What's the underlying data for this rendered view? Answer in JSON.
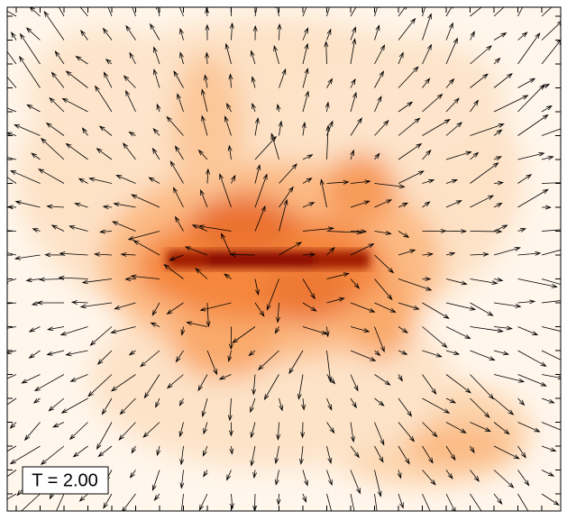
{
  "label": "T = 2.00"
}
